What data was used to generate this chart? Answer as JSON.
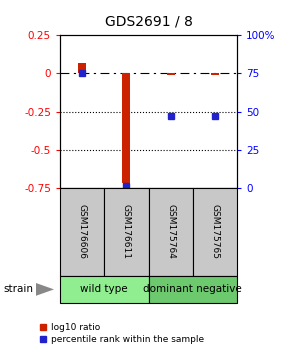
{
  "title": "GDS2691 / 8",
  "samples": [
    "GSM176606",
    "GSM176611",
    "GSM175764",
    "GSM175765"
  ],
  "log10_ratio": [
    0.07,
    -0.72,
    -0.01,
    -0.01
  ],
  "percentile_rank": [
    75,
    1,
    47,
    47
  ],
  "groups": [
    {
      "label": "wild type",
      "start": 0,
      "end": 2,
      "color": "#90ee90"
    },
    {
      "label": "dominant negative",
      "start": 2,
      "end": 4,
      "color": "#6dc96d"
    }
  ],
  "strain_label": "strain",
  "ylim_left": [
    -0.75,
    0.25
  ],
  "ylim_right": [
    0,
    100
  ],
  "yticks_left": [
    0.25,
    0.0,
    -0.25,
    -0.5,
    -0.75
  ],
  "ytick_labels_left": [
    "0.25",
    "0",
    "-0.25",
    "-0.5",
    "-0.75"
  ],
  "yticks_right": [
    100,
    75,
    50,
    25,
    0
  ],
  "ytick_labels_right": [
    "100%",
    "75",
    "50",
    "25",
    "0"
  ],
  "hlines_dotted": [
    -0.25,
    -0.5
  ],
  "hline_dash": 0.0,
  "bar_color": "#cc2200",
  "point_color": "#2222cc",
  "legend_red_label": "log10 ratio",
  "legend_blue_label": "percentile rank within the sample",
  "bg_color": "#ffffff",
  "sample_box_color": "#c8c8c8",
  "bar_width": 0.18
}
